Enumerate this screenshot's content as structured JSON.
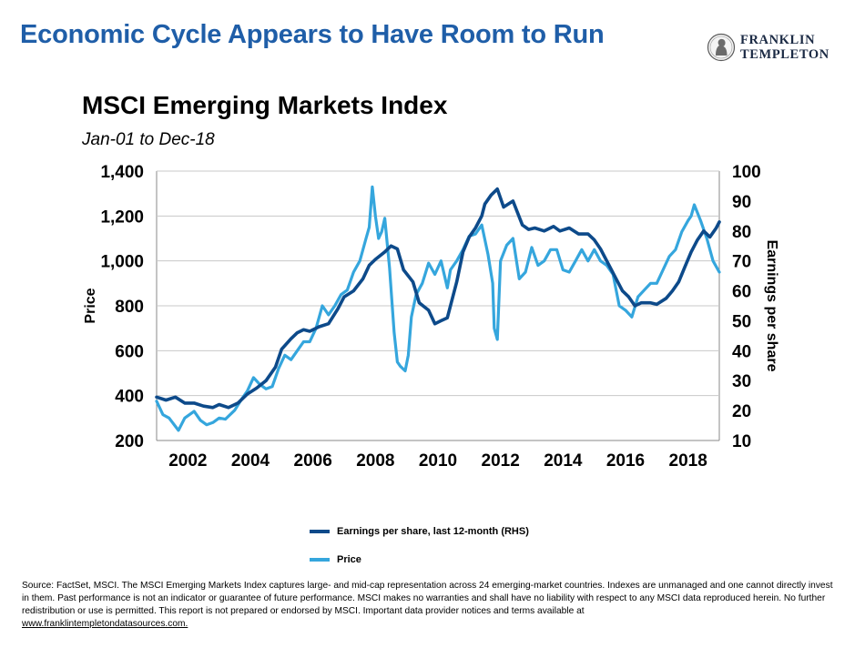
{
  "slide": {
    "title": "Economic Cycle Appears to Have Room to Run",
    "logo": {
      "line1": "FRANKLIN",
      "line2": "TEMPLETON"
    }
  },
  "chart_data": {
    "type": "line",
    "title": "MSCI Emerging Markets Index",
    "subtitle": "Jan-01 to Dec-18",
    "ylabel": "Price",
    "y2label": "Earnings per share",
    "ylim": [
      200,
      1400
    ],
    "y2lim": [
      10,
      100
    ],
    "xlim": [
      2001.0,
      2019.0
    ],
    "yticks": [
      "1,400",
      "1,200",
      "1,000",
      "800",
      "600",
      "400",
      "200"
    ],
    "y2ticks": [
      "100",
      "90",
      "80",
      "70",
      "60",
      "50",
      "40",
      "30",
      "20",
      "10"
    ],
    "xticks": [
      "2002",
      "2004",
      "2006",
      "2008",
      "2010",
      "2012",
      "2014",
      "2016",
      "2018"
    ],
    "grid": true,
    "legend_position": "bottom",
    "colors": {
      "eps": "#0d4a8a",
      "price": "#35a6dd"
    },
    "series": [
      {
        "name": "Earnings per share, last 12-month (RHS)",
        "axis": "right",
        "x": [
          2001.0,
          2001.3,
          2001.6,
          2001.9,
          2002.2,
          2002.5,
          2002.8,
          2003.0,
          2003.3,
          2003.6,
          2003.9,
          2004.2,
          2004.5,
          2004.8,
          2005.0,
          2005.3,
          2005.5,
          2005.7,
          2005.9,
          2006.2,
          2006.5,
          2006.8,
          2007.0,
          2007.3,
          2007.6,
          2007.8,
          2008.0,
          2008.3,
          2008.5,
          2008.7,
          2008.9,
          2009.2,
          2009.4,
          2009.7,
          2009.9,
          2010.1,
          2010.3,
          2010.6,
          2010.8,
          2011.0,
          2011.2,
          2011.4,
          2011.5,
          2011.7,
          2011.9,
          2012.1,
          2012.4,
          2012.7,
          2012.9,
          2013.1,
          2013.4,
          2013.7,
          2013.9,
          2014.2,
          2014.5,
          2014.8,
          2015.0,
          2015.2,
          2015.5,
          2015.7,
          2015.9,
          2016.1,
          2016.3,
          2016.5,
          2016.8,
          2017.0,
          2017.3,
          2017.5,
          2017.7,
          2017.9,
          2018.1,
          2018.3,
          2018.5,
          2018.7,
          2018.9,
          2019.0
        ],
        "values": [
          24.5,
          23.5,
          24.5,
          22.5,
          22.5,
          21.5,
          21,
          22,
          21,
          22.5,
          25.5,
          27.5,
          30,
          34.5,
          40.5,
          44,
          46,
          47,
          46.5,
          48,
          49,
          54,
          58,
          60,
          64,
          68.5,
          70.5,
          73,
          75,
          74,
          67,
          63,
          56,
          53.5,
          49,
          50,
          51,
          63,
          73,
          78,
          81,
          85,
          89,
          92,
          94,
          88,
          90,
          82,
          80.5,
          81,
          80,
          81.5,
          80,
          81,
          79,
          79,
          77,
          74,
          68,
          64,
          60,
          58,
          55,
          56,
          56,
          55.5,
          57.5,
          60,
          63,
          68,
          73,
          77,
          80,
          78,
          81,
          83
        ]
      },
      {
        "name": "Price",
        "axis": "left",
        "x": [
          2001.0,
          2001.2,
          2001.4,
          2001.7,
          2001.9,
          2002.2,
          2002.4,
          2002.6,
          2002.8,
          2003.0,
          2003.2,
          2003.5,
          2003.7,
          2003.9,
          2004.1,
          2004.3,
          2004.5,
          2004.7,
          2004.9,
          2005.1,
          2005.3,
          2005.5,
          2005.7,
          2005.9,
          2006.1,
          2006.3,
          2006.5,
          2006.7,
          2006.9,
          2007.1,
          2007.3,
          2007.5,
          2007.7,
          2007.8,
          2007.9,
          2008.0,
          2008.1,
          2008.2,
          2008.3,
          2008.45,
          2008.6,
          2008.7,
          2008.8,
          2008.95,
          2009.05,
          2009.15,
          2009.3,
          2009.5,
          2009.7,
          2009.9,
          2010.1,
          2010.3,
          2010.4,
          2010.6,
          2010.8,
          2011.0,
          2011.2,
          2011.4,
          2011.6,
          2011.75,
          2011.8,
          2011.9,
          2012.0,
          2012.2,
          2012.4,
          2012.6,
          2012.8,
          2013.0,
          2013.2,
          2013.4,
          2013.6,
          2013.8,
          2014.0,
          2014.2,
          2014.4,
          2014.6,
          2014.8,
          2015.0,
          2015.2,
          2015.4,
          2015.6,
          2015.8,
          2016.0,
          2016.2,
          2016.4,
          2016.6,
          2016.8,
          2017.0,
          2017.2,
          2017.4,
          2017.6,
          2017.8,
          2018.0,
          2018.1,
          2018.2,
          2018.4,
          2018.6,
          2018.8,
          2019.0
        ],
        "values": [
          375,
          315,
          300,
          245,
          300,
          330,
          290,
          270,
          280,
          300,
          295,
          335,
          380,
          420,
          480,
          450,
          430,
          440,
          520,
          580,
          560,
          600,
          640,
          640,
          700,
          800,
          760,
          800,
          850,
          870,
          950,
          1000,
          1100,
          1150,
          1330,
          1200,
          1100,
          1130,
          1190,
          970,
          680,
          550,
          530,
          510,
          580,
          750,
          850,
          900,
          990,
          940,
          1000,
          880,
          960,
          1000,
          1050,
          1110,
          1120,
          1160,
          1030,
          900,
          700,
          650,
          1000,
          1070,
          1100,
          920,
          950,
          1060,
          980,
          1000,
          1050,
          1050,
          960,
          950,
          1000,
          1050,
          1000,
          1050,
          1000,
          980,
          940,
          800,
          780,
          750,
          840,
          870,
          900,
          900,
          960,
          1020,
          1050,
          1130,
          1180,
          1200,
          1250,
          1180,
          1100,
          1000,
          950
        ]
      }
    ]
  },
  "legend": {
    "items": [
      {
        "label": "Earnings per share, last 12-month (RHS)",
        "color": "#0d4a8a"
      },
      {
        "label": "Price",
        "color": "#35a6dd"
      }
    ]
  },
  "footer": {
    "source_text": "Source:  FactSet, MSCI. The MSCI Emerging Markets Index captures large- and mid-cap representation across 24 emerging-market countries. Indexes are unmanaged and one cannot directly invest in them. Past performance is not an indicator or guarantee of future performance. MSCI makes no warranties and shall have no liability with respect to any MSCI data reproduced herein. No further redistribution or use is permitted. This report is not prepared or endorsed by MSCI. Important data provider notices and terms available at",
    "link_text": "www.franklintempletondatasources.com."
  }
}
